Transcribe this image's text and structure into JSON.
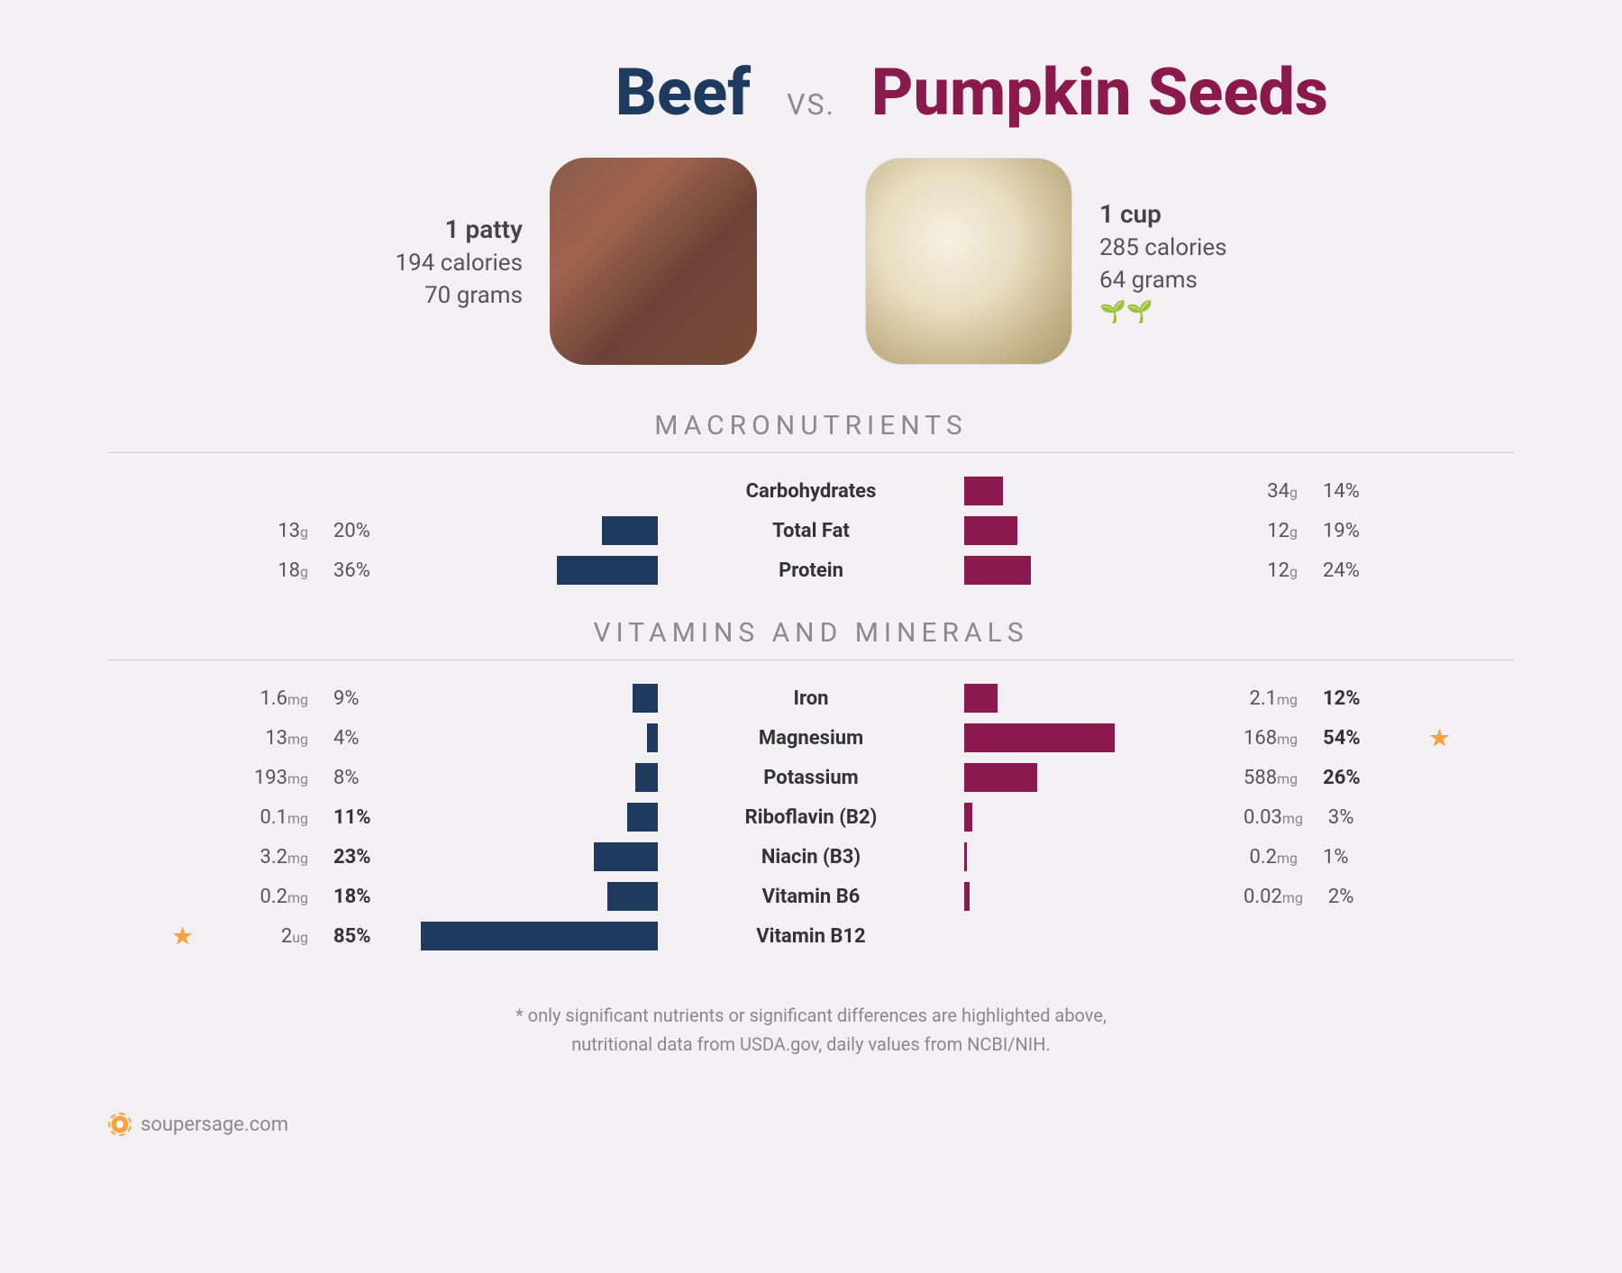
{
  "header": {
    "title_left": "Beef",
    "vs": "VS.",
    "title_right": "Pumpkin Seeds"
  },
  "food_left": {
    "serving": "1 patty",
    "calories": "194 calories",
    "grams": "70 grams"
  },
  "food_right": {
    "serving": "1 cup",
    "calories": "285 calories",
    "grams": "64 grams",
    "plant": "🌱🌱"
  },
  "colors": {
    "left_bar": "#1f3a5f",
    "right_bar": "#8a1a4d",
    "star": "#f4a340"
  },
  "sections": {
    "macros_title": "MACRONUTRIENTS",
    "vitamins_title": "VITAMINS AND MINERALS"
  },
  "macros": [
    {
      "label": "Carbohydrates",
      "left": {
        "amt": "",
        "unit": "",
        "pct": "",
        "bar_pct": 0,
        "bold": false
      },
      "right": {
        "amt": "34",
        "unit": "g",
        "pct": "14%",
        "bar_pct": 14,
        "bold": false
      }
    },
    {
      "label": "Total Fat",
      "left": {
        "amt": "13",
        "unit": "g",
        "pct": "20%",
        "bar_pct": 20,
        "bold": false
      },
      "right": {
        "amt": "12",
        "unit": "g",
        "pct": "19%",
        "bar_pct": 19,
        "bold": false
      }
    },
    {
      "label": "Protein",
      "left": {
        "amt": "18",
        "unit": "g",
        "pct": "36%",
        "bar_pct": 36,
        "bold": false
      },
      "right": {
        "amt": "12",
        "unit": "g",
        "pct": "24%",
        "bar_pct": 24,
        "bold": false
      }
    }
  ],
  "vitamins": [
    {
      "label": "Iron",
      "left": {
        "amt": "1.6",
        "unit": "mg",
        "pct": "9%",
        "bar_pct": 9,
        "bold": false
      },
      "right": {
        "amt": "2.1",
        "unit": "mg",
        "pct": "12%",
        "bar_pct": 12,
        "bold": true
      }
    },
    {
      "label": "Magnesium",
      "left": {
        "amt": "13",
        "unit": "mg",
        "pct": "4%",
        "bar_pct": 4,
        "bold": false
      },
      "right": {
        "amt": "168",
        "unit": "mg",
        "pct": "54%",
        "bar_pct": 54,
        "bold": true,
        "star": true
      }
    },
    {
      "label": "Potassium",
      "left": {
        "amt": "193",
        "unit": "mg",
        "pct": "8%",
        "bar_pct": 8,
        "bold": false
      },
      "right": {
        "amt": "588",
        "unit": "mg",
        "pct": "26%",
        "bar_pct": 26,
        "bold": true
      }
    },
    {
      "label": "Riboflavin (B2)",
      "left": {
        "amt": "0.1",
        "unit": "mg",
        "pct": "11%",
        "bar_pct": 11,
        "bold": true
      },
      "right": {
        "amt": "0.03",
        "unit": "mg",
        "pct": "3%",
        "bar_pct": 3,
        "bold": false
      }
    },
    {
      "label": "Niacin (B3)",
      "left": {
        "amt": "3.2",
        "unit": "mg",
        "pct": "23%",
        "bar_pct": 23,
        "bold": true
      },
      "right": {
        "amt": "0.2",
        "unit": "mg",
        "pct": "1%",
        "bar_pct": 1,
        "bold": false
      }
    },
    {
      "label": "Vitamin B6",
      "left": {
        "amt": "0.2",
        "unit": "mg",
        "pct": "18%",
        "bar_pct": 18,
        "bold": true
      },
      "right": {
        "amt": "0.02",
        "unit": "mg",
        "pct": "2%",
        "bar_pct": 2,
        "bold": false
      }
    },
    {
      "label": "Vitamin B12",
      "left": {
        "amt": "2",
        "unit": "ug",
        "pct": "85%",
        "bar_pct": 85,
        "bold": true,
        "star": true
      },
      "right": {
        "amt": "",
        "unit": "",
        "pct": "",
        "bar_pct": 0,
        "bold": false
      }
    }
  ],
  "footnote_line1": "* only significant nutrients or significant differences are highlighted above,",
  "footnote_line2": "nutritional data from USDA.gov, daily values from NCBI/NIH.",
  "brand": "soupersage.com"
}
